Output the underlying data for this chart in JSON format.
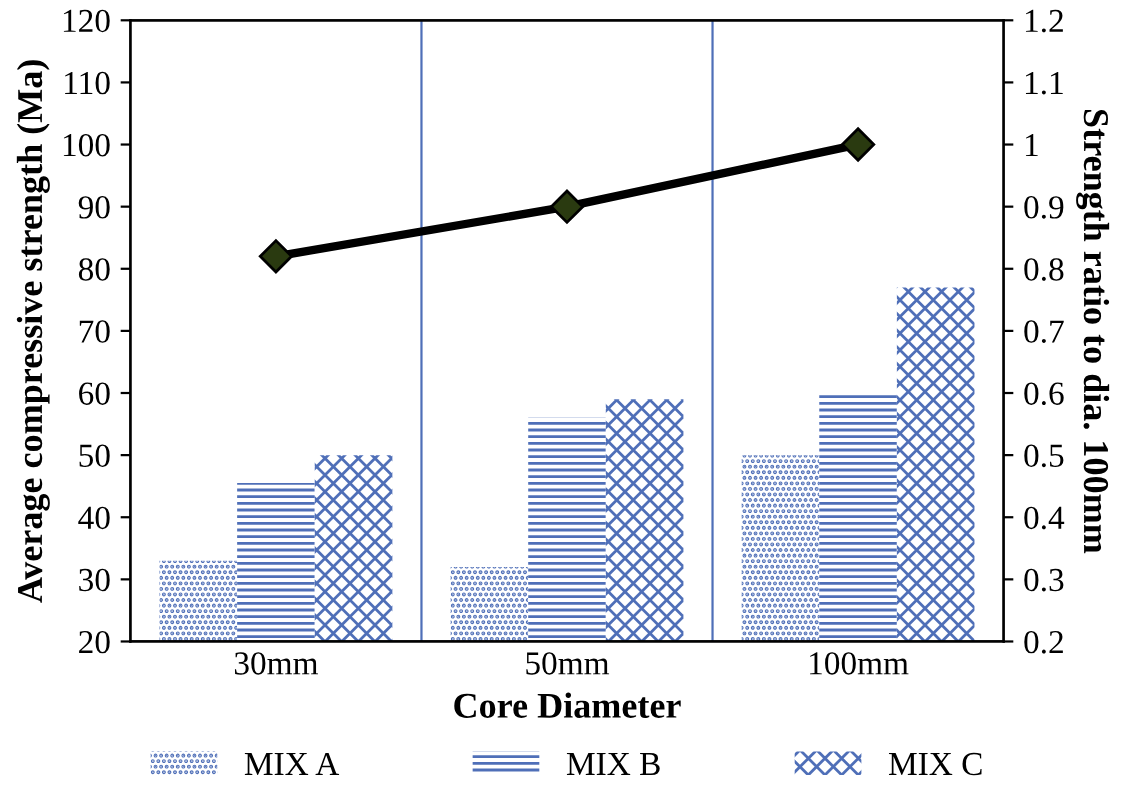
{
  "chart_data": {
    "type": "bar",
    "xlabel": "Core Diameter",
    "ylabel": "Average compressive strength (Ma)",
    "y2label": "Strength ratio to dia. 100mm",
    "categories": [
      "30mm",
      "50mm",
      "100mm"
    ],
    "series": [
      {
        "name": "MIX A",
        "color": "#4f6fb8",
        "values": [
          33,
          32,
          50
        ]
      },
      {
        "name": "MIX B",
        "color": "#4f6fb8",
        "values": [
          45.5,
          56,
          60
        ]
      },
      {
        "name": "MIX C",
        "color": "#4f6fb8",
        "values": [
          50,
          59,
          77
        ]
      },
      {
        "type": "line",
        "axis": "y2",
        "color": "#000000",
        "marker": "diamond",
        "values": [
          0.82,
          0.9,
          1.0
        ]
      }
    ],
    "ylim": [
      20,
      120
    ],
    "yticks": [
      20,
      30,
      40,
      50,
      60,
      70,
      80,
      90,
      100,
      110,
      120
    ],
    "y2lim": [
      0.2,
      1.2
    ],
    "y2ticks": [
      0.2,
      0.3,
      0.4,
      0.5,
      0.6,
      0.7,
      0.8,
      0.9,
      1,
      1.1,
      1.2
    ],
    "grid": false,
    "legend": "bottom"
  }
}
